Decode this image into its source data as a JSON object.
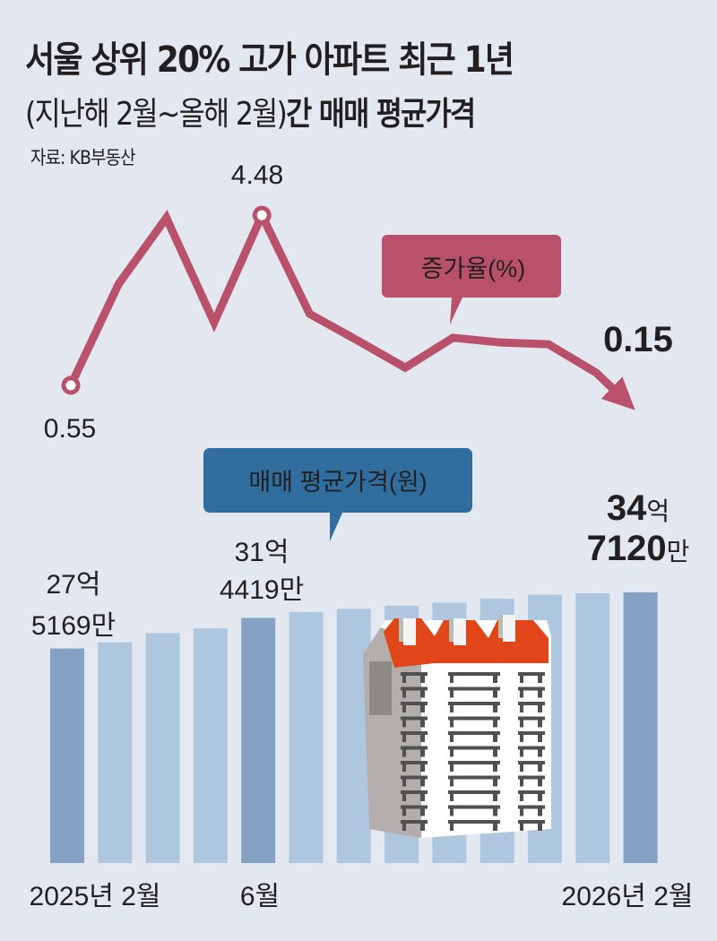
{
  "title": {
    "line1": "서울 상위 20% 고가 아파트 최근 1년",
    "line2_paren": "(지난해 2월~올해 2월)",
    "line2_bold": "간 매매 평균가격"
  },
  "source": "자료: KB부동산",
  "colors": {
    "background": "#e2e7f0",
    "line": "#b9516a",
    "callout_line": "#b9516a",
    "callout_bar": "#2f6e9f",
    "bar_highlight": "#85a2c4",
    "bar": "#afc6df"
  },
  "chart_data": [
    {
      "type": "line",
      "series": [
        {
          "name": "증가율(%)",
          "values": [
            0.55,
            2.89,
            4.42,
            2.0,
            4.48,
            2.2,
            1.59,
            0.96,
            1.65,
            1.54,
            1.5,
            0.84,
            0.15
          ]
        }
      ],
      "callout": "증가율(%)",
      "data_labels": [
        {
          "index": 0,
          "text": "0.55"
        },
        {
          "index": 4,
          "text": "4.48"
        },
        {
          "index": 12,
          "text": "0.15"
        }
      ],
      "markers": [
        0,
        4
      ],
      "grid": false
    },
    {
      "type": "bar",
      "series": [
        {
          "name": "매매 평균가격(원)",
          "values": [
            27.5169,
            28.3,
            29.5,
            30.1,
            31.4419,
            32.2,
            32.6,
            33.0,
            33.4,
            33.9,
            34.4,
            34.6,
            34.712
          ]
        }
      ],
      "unit": "억원",
      "callout": "매매 평균가격(원)",
      "highlighted": [
        0,
        4,
        12
      ],
      "data_labels": [
        {
          "index": 0,
          "eok": "27억",
          "man": "5169만"
        },
        {
          "index": 4,
          "eok": "31억",
          "man": "4419만"
        },
        {
          "index": 12,
          "eok_num": "34",
          "eok_unit": "억",
          "man_num": "7120",
          "man_unit": "만"
        }
      ],
      "x_tick_labels": [
        {
          "index": 0,
          "text": "2025년 2월"
        },
        {
          "index": 4,
          "text": "6월"
        },
        {
          "index": 12,
          "text": "2026년 2월"
        }
      ],
      "grid": false
    }
  ]
}
